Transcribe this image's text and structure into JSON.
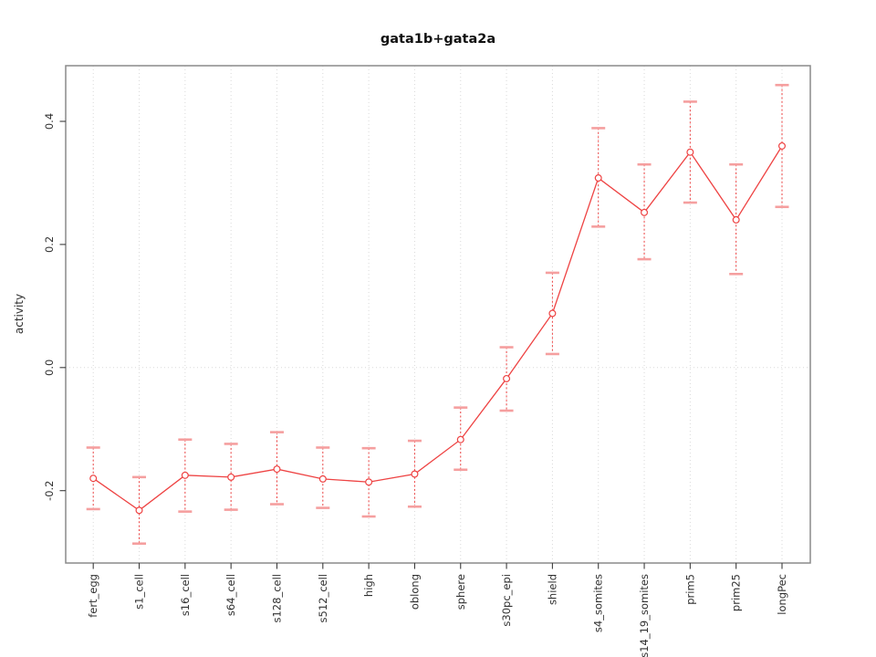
{
  "chart_data": {
    "type": "line",
    "title": "gata1b+gata2a",
    "xlabel": "",
    "ylabel": "activity",
    "categories": [
      "fert_egg",
      "s1_cell",
      "s16_cell",
      "s64_cell",
      "s128_cell",
      "s512_cell",
      "high",
      "oblong",
      "sphere",
      "s30pc_epi",
      "shield",
      "s4_somites",
      "s14_19_somites",
      "prim5",
      "prim25",
      "longPec"
    ],
    "series": [
      {
        "name": "gata1b+gata2a",
        "values": [
          -0.18,
          -0.232,
          -0.175,
          -0.178,
          -0.165,
          -0.181,
          -0.186,
          -0.173,
          -0.117,
          -0.018,
          0.088,
          0.308,
          0.252,
          0.35,
          0.24,
          0.36
        ]
      }
    ],
    "error_upper": [
      -0.13,
      -0.178,
      -0.117,
      -0.124,
      -0.105,
      -0.13,
      -0.131,
      -0.119,
      -0.065,
      0.033,
      0.154,
      0.389,
      0.33,
      0.432,
      0.33,
      0.459
    ],
    "error_lower": [
      -0.23,
      -0.286,
      -0.234,
      -0.231,
      -0.222,
      -0.228,
      -0.242,
      -0.226,
      -0.166,
      -0.07,
      0.022,
      0.229,
      0.176,
      0.268,
      0.152,
      0.261
    ],
    "y_ticks": [
      -0.2,
      0.0,
      0.2,
      0.4
    ],
    "y_tick_labels": [
      "-0.2",
      "0.0",
      "0.2",
      "0.4"
    ],
    "ylim": [
      -0.315,
      0.49
    ],
    "marker": "open-circle",
    "legend": "none",
    "grid": {
      "vertical": "dotted line at each category",
      "horizontal": "dotted line at y=0"
    },
    "colors": {
      "series": "#ee4343",
      "error_caps": "#f59f9f",
      "grid": "#d9d9d9",
      "box": "#8a8a8a",
      "tick": "#3c3c3c",
      "text": "#303030",
      "background": "#ffffff"
    }
  }
}
